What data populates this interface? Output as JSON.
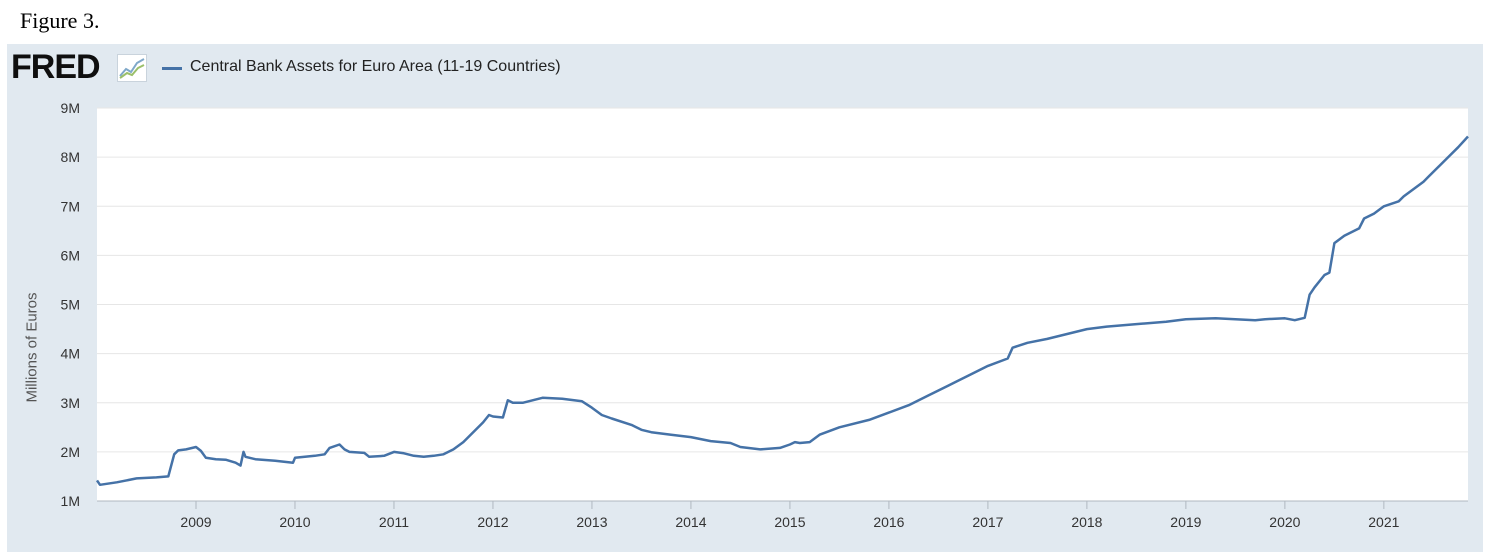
{
  "caption": "Figure 3.",
  "brand": {
    "logo_text": "FRED",
    "logo_icon": "chart-trend-icon"
  },
  "legend": {
    "label": "Central Bank Assets for Euro Area (11-19 Countries)",
    "color": "#4572a7"
  },
  "chart_data": {
    "type": "line",
    "title": "",
    "xlabel": "",
    "ylabel": "Millions of Euros",
    "xlim": [
      2008.0,
      2021.85
    ],
    "ylim": [
      1,
      9
    ],
    "y_ticks": [
      1,
      2,
      3,
      4,
      5,
      6,
      7,
      8,
      9
    ],
    "y_tick_labels": [
      "1M",
      "2M",
      "3M",
      "4M",
      "5M",
      "6M",
      "7M",
      "8M",
      "9M"
    ],
    "x_ticks": [
      2009,
      2010,
      2011,
      2012,
      2013,
      2014,
      2015,
      2016,
      2017,
      2018,
      2019,
      2020,
      2021
    ],
    "x_tick_labels": [
      "2009",
      "2010",
      "2011",
      "2012",
      "2013",
      "2014",
      "2015",
      "2016",
      "2017",
      "2018",
      "2019",
      "2020",
      "2021"
    ],
    "grid": true,
    "series": [
      {
        "name": "Central Bank Assets for Euro Area (11-19 Countries)",
        "x": [
          2008.0,
          2008.03,
          2008.2,
          2008.4,
          2008.6,
          2008.72,
          2008.78,
          2008.82,
          2008.9,
          2009.0,
          2009.05,
          2009.1,
          2009.2,
          2009.3,
          2009.4,
          2009.45,
          2009.48,
          2009.5,
          2009.6,
          2009.8,
          2009.98,
          2010.0,
          2010.2,
          2010.3,
          2010.35,
          2010.45,
          2010.5,
          2010.55,
          2010.7,
          2010.75,
          2010.9,
          2011.0,
          2011.1,
          2011.2,
          2011.3,
          2011.4,
          2011.5,
          2011.6,
          2011.7,
          2011.8,
          2011.9,
          2011.96,
          2012.0,
          2012.1,
          2012.15,
          2012.2,
          2012.3,
          2012.4,
          2012.5,
          2012.7,
          2012.9,
          2013.0,
          2013.1,
          2013.2,
          2013.4,
          2013.5,
          2013.6,
          2013.8,
          2014.0,
          2014.2,
          2014.4,
          2014.5,
          2014.7,
          2014.9,
          2015.0,
          2015.05,
          2015.1,
          2015.2,
          2015.3,
          2015.5,
          2015.8,
          2016.0,
          2016.2,
          2016.4,
          2016.5,
          2016.6,
          2016.8,
          2017.0,
          2017.2,
          2017.25,
          2017.4,
          2017.6,
          2017.8,
          2018.0,
          2018.2,
          2018.5,
          2018.8,
          2019.0,
          2019.3,
          2019.5,
          2019.7,
          2019.8,
          2020.0,
          2020.1,
          2020.2,
          2020.25,
          2020.3,
          2020.4,
          2020.45,
          2020.5,
          2020.6,
          2020.75,
          2020.8,
          2020.9,
          2021.0,
          2021.15,
          2021.2,
          2021.4,
          2021.45,
          2021.6,
          2021.65,
          2021.75,
          2021.85
        ],
        "values": [
          1.42,
          1.33,
          1.38,
          1.46,
          1.48,
          1.5,
          1.95,
          2.03,
          2.05,
          2.1,
          2.02,
          1.88,
          1.85,
          1.84,
          1.78,
          1.72,
          2.0,
          1.9,
          1.85,
          1.82,
          1.78,
          1.88,
          1.92,
          1.95,
          2.08,
          2.15,
          2.05,
          2.0,
          1.98,
          1.9,
          1.92,
          2.0,
          1.97,
          1.92,
          1.9,
          1.92,
          1.95,
          2.05,
          2.2,
          2.4,
          2.6,
          2.75,
          2.72,
          2.7,
          3.05,
          3.0,
          3.0,
          3.05,
          3.1,
          3.08,
          3.03,
          2.9,
          2.75,
          2.68,
          2.55,
          2.45,
          2.4,
          2.35,
          2.3,
          2.22,
          2.18,
          2.1,
          2.05,
          2.08,
          2.15,
          2.2,
          2.18,
          2.2,
          2.35,
          2.5,
          2.65,
          2.8,
          2.95,
          3.15,
          3.25,
          3.35,
          3.55,
          3.75,
          3.9,
          4.12,
          4.22,
          4.3,
          4.4,
          4.5,
          4.55,
          4.6,
          4.65,
          4.7,
          4.72,
          4.7,
          4.68,
          4.7,
          4.72,
          4.68,
          4.73,
          5.2,
          5.35,
          5.6,
          5.65,
          6.25,
          6.4,
          6.55,
          6.75,
          6.85,
          7.0,
          7.1,
          7.2,
          7.5,
          7.6,
          7.9,
          8.0,
          8.2,
          8.42
        ]
      }
    ]
  }
}
